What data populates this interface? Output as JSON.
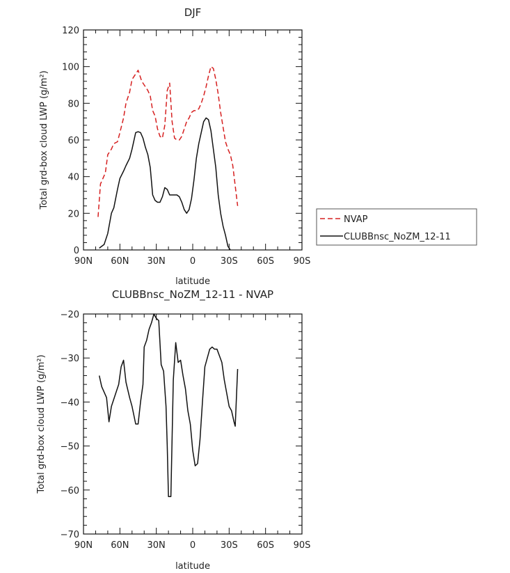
{
  "chart_data": [
    {
      "type": "line",
      "title": "DJF",
      "xlabel": "latitude",
      "ylabel": "Total grd-box cloud LWP (g/m²)",
      "xlim": [
        -90,
        90
      ],
      "ylim": [
        0,
        120
      ],
      "xticks": [
        {
          "value": -90,
          "label": "90N"
        },
        {
          "value": -60,
          "label": "60N"
        },
        {
          "value": -30,
          "label": "30N"
        },
        {
          "value": 0,
          "label": "0"
        },
        {
          "value": 30,
          "label": "30S"
        },
        {
          "value": 60,
          "label": "60S"
        },
        {
          "value": 90,
          "label": "90S"
        }
      ],
      "yticks": [
        0,
        20,
        40,
        60,
        80,
        100,
        120
      ],
      "legend_position": "right",
      "series": [
        {
          "name": "NVAP",
          "color": "#d62020",
          "dash": "dashed",
          "points": [
            [
              -78,
              18
            ],
            [
              -76,
              36
            ],
            [
              -72,
              42
            ],
            [
              -70,
              52
            ],
            [
              -67,
              55
            ],
            [
              -65,
              58
            ],
            [
              -62,
              59
            ],
            [
              -60,
              64
            ],
            [
              -57,
              72
            ],
            [
              -55,
              80
            ],
            [
              -52,
              86
            ],
            [
              -50,
              93
            ],
            [
              -47,
              96
            ],
            [
              -45,
              98
            ],
            [
              -42,
              92
            ],
            [
              -40,
              90
            ],
            [
              -37,
              87
            ],
            [
              -35,
              84
            ],
            [
              -33,
              76
            ],
            [
              -31,
              73
            ],
            [
              -29,
              66
            ],
            [
              -27,
              62
            ],
            [
              -25,
              61
            ],
            [
              -23,
              68
            ],
            [
              -21,
              87
            ],
            [
              -19,
              91
            ],
            [
              -17,
              70
            ],
            [
              -15,
              61
            ],
            [
              -13,
              60
            ],
            [
              -11,
              60
            ],
            [
              -9,
              62
            ],
            [
              -7,
              66
            ],
            [
              -5,
              70
            ],
            [
              -3,
              72
            ],
            [
              -1,
              75
            ],
            [
              1,
              76
            ],
            [
              3,
              76
            ],
            [
              5,
              77
            ],
            [
              7,
              80
            ],
            [
              9,
              84
            ],
            [
              11,
              89
            ],
            [
              13,
              95
            ],
            [
              15,
              100
            ],
            [
              17,
              99
            ],
            [
              19,
              93
            ],
            [
              21,
              85
            ],
            [
              23,
              75
            ],
            [
              25,
              67
            ],
            [
              27,
              59
            ],
            [
              29,
              55
            ],
            [
              31,
              52
            ],
            [
              33,
              46
            ],
            [
              35,
              35
            ],
            [
              37,
              24
            ]
          ]
        },
        {
          "name": "CLUBBnsc_NoZM_12-11",
          "color": "#111111",
          "dash": "solid",
          "points": [
            [
              -77,
              1
            ],
            [
              -73,
              3
            ],
            [
              -70,
              9
            ],
            [
              -67,
              20
            ],
            [
              -65,
              23
            ],
            [
              -62,
              33
            ],
            [
              -60,
              39
            ],
            [
              -57,
              43
            ],
            [
              -55,
              46
            ],
            [
              -52,
              50
            ],
            [
              -50,
              55
            ],
            [
              -47,
              64
            ],
            [
              -45,
              64.5
            ],
            [
              -43,
              64
            ],
            [
              -41,
              61
            ],
            [
              -39,
              56
            ],
            [
              -37,
              52
            ],
            [
              -35,
              45
            ],
            [
              -33,
              30
            ],
            [
              -31,
              27
            ],
            [
              -29,
              26
            ],
            [
              -27,
              26
            ],
            [
              -25,
              29
            ],
            [
              -23,
              34
            ],
            [
              -21,
              33
            ],
            [
              -19,
              30
            ],
            [
              -17,
              30
            ],
            [
              -15,
              30
            ],
            [
              -13,
              30
            ],
            [
              -11,
              29
            ],
            [
              -9,
              26
            ],
            [
              -7,
              22
            ],
            [
              -5,
              20
            ],
            [
              -3,
              22
            ],
            [
              -1,
              28
            ],
            [
              1,
              38
            ],
            [
              3,
              50
            ],
            [
              5,
              58
            ],
            [
              7,
              64
            ],
            [
              9,
              70
            ],
            [
              11,
              72
            ],
            [
              13,
              71
            ],
            [
              15,
              65
            ],
            [
              17,
              55
            ],
            [
              19,
              45
            ],
            [
              21,
              30
            ],
            [
              23,
              20
            ],
            [
              25,
              13
            ],
            [
              27,
              8
            ],
            [
              29,
              2
            ],
            [
              31,
              0
            ]
          ]
        }
      ]
    },
    {
      "type": "line",
      "title": "CLUBBnsc_NoZM_12-11 - NVAP",
      "xlabel": "latitude",
      "ylabel": "Total grd-box cloud LWP (g/m²)",
      "xlim": [
        -90,
        90
      ],
      "ylim": [
        -70,
        -20
      ],
      "xticks": [
        {
          "value": -90,
          "label": "90N"
        },
        {
          "value": -60,
          "label": "60N"
        },
        {
          "value": -30,
          "label": "30N"
        },
        {
          "value": 0,
          "label": "0"
        },
        {
          "value": 30,
          "label": "30S"
        },
        {
          "value": 60,
          "label": "60S"
        },
        {
          "value": 90,
          "label": "90S"
        }
      ],
      "yticks": [
        -70,
        -60,
        -50,
        -40,
        -30,
        -20
      ],
      "series": [
        {
          "color": "#111111",
          "dash": "solid",
          "points": [
            [
              -77,
              -34
            ],
            [
              -75,
              -36.5
            ],
            [
              -71,
              -39
            ],
            [
              -69,
              -44.5
            ],
            [
              -67,
              -41
            ],
            [
              -64,
              -38.5
            ],
            [
              -61,
              -36
            ],
            [
              -59,
              -32
            ],
            [
              -57,
              -30.5
            ],
            [
              -55,
              -35.5
            ],
            [
              -52,
              -39
            ],
            [
              -50,
              -41
            ],
            [
              -47,
              -45
            ],
            [
              -45,
              -45
            ],
            [
              -43,
              -40
            ],
            [
              -41,
              -36
            ],
            [
              -40,
              -27.5
            ],
            [
              -38,
              -26
            ],
            [
              -36,
              -23.5
            ],
            [
              -34,
              -22
            ],
            [
              -32,
              -20
            ],
            [
              -30,
              -21
            ],
            [
              -28,
              -21.5
            ],
            [
              -26,
              -31.5
            ],
            [
              -24,
              -33
            ],
            [
              -22,
              -41
            ],
            [
              -21,
              -50
            ],
            [
              -20,
              -61.5
            ],
            [
              -18,
              -61.5
            ],
            [
              -16,
              -35
            ],
            [
              -14,
              -26.5
            ],
            [
              -12,
              -31
            ],
            [
              -10,
              -30.5
            ],
            [
              -8,
              -34
            ],
            [
              -6,
              -37
            ],
            [
              -4,
              -42
            ],
            [
              -2,
              -45
            ],
            [
              0,
              -51
            ],
            [
              2,
              -54.5
            ],
            [
              4,
              -54
            ],
            [
              6,
              -48.5
            ],
            [
              8,
              -40
            ],
            [
              10,
              -32
            ],
            [
              12,
              -30
            ],
            [
              14,
              -28
            ],
            [
              16,
              -27.5
            ],
            [
              18,
              -28
            ],
            [
              20,
              -28
            ],
            [
              22,
              -29.5
            ],
            [
              24,
              -31
            ],
            [
              26,
              -35
            ],
            [
              28,
              -38
            ],
            [
              30,
              -41
            ],
            [
              32,
              -42
            ],
            [
              34,
              -44.5
            ],
            [
              35,
              -45.5
            ],
            [
              37,
              -32.5
            ]
          ]
        }
      ]
    }
  ]
}
